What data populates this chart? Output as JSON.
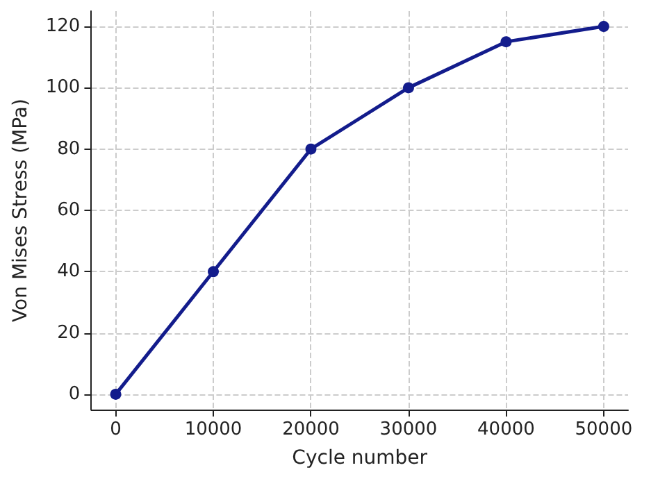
{
  "chart_data": {
    "type": "line",
    "xlabel": "Cycle number",
    "ylabel": "Von Mises Stress (MPa)",
    "x": [
      0,
      10000,
      20000,
      30000,
      40000,
      50000
    ],
    "series": [
      {
        "color": "#131c8c",
        "values": [
          0,
          40,
          80,
          100,
          115,
          120
        ]
      }
    ],
    "xlim": [
      -2500,
      52500
    ],
    "xticks": [
      0,
      10000,
      20000,
      30000,
      40000,
      50000
    ],
    "ylim": [
      -5,
      125
    ],
    "yticks": [
      0,
      20,
      40,
      60,
      80,
      100,
      120
    ],
    "grid": true,
    "marker": "circle",
    "line_style": "solid"
  }
}
